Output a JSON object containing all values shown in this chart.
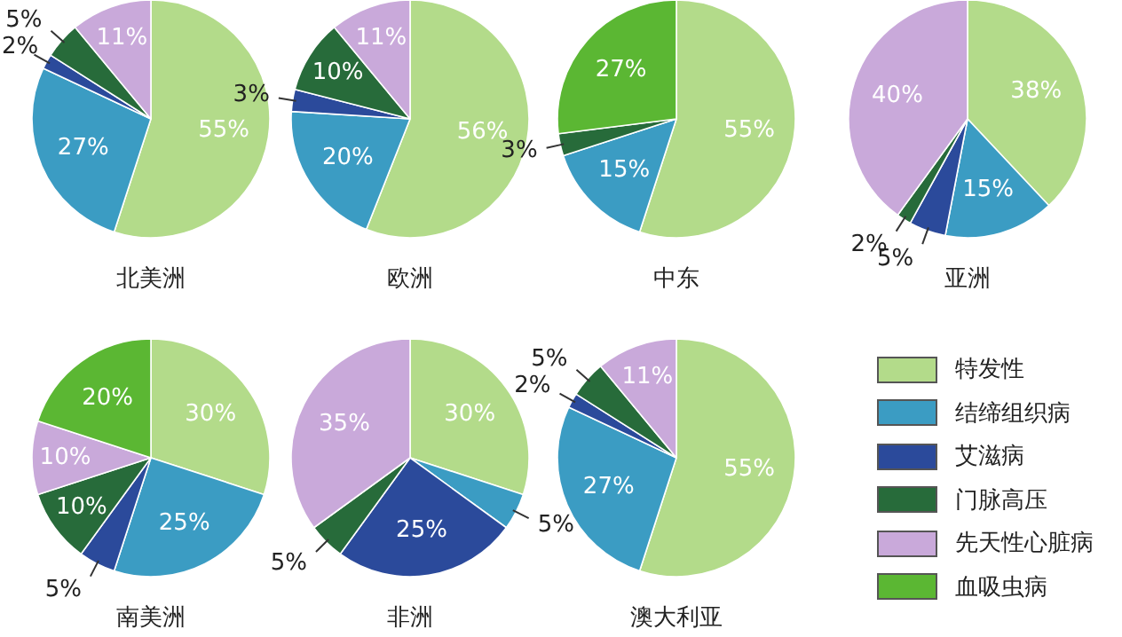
{
  "chart_data": [
    {
      "type": "pie",
      "title": "北美洲",
      "categories": [
        null,
        null,
        null,
        null,
        null,
        null
      ],
      "values": [
        55,
        27,
        2,
        5,
        11,
        0
      ],
      "colors": [
        "#b3db8a",
        "#3b9cc3",
        "#2b4a9b",
        "#276b3a",
        "#c9a9da",
        "#5bb733"
      ],
      "value_labels": [
        "55%",
        "27%",
        "2%",
        "5%",
        "11%",
        null
      ],
      "legend": false
    },
    {
      "type": "pie",
      "title": "欧洲",
      "categories": [
        null,
        null,
        null,
        null,
        null,
        null
      ],
      "values": [
        56,
        20,
        3,
        10,
        11,
        0
      ],
      "colors": [
        "#b3db8a",
        "#3b9cc3",
        "#2b4a9b",
        "#276b3a",
        "#c9a9da",
        "#5bb733"
      ],
      "value_labels": [
        "56%",
        "20%",
        "3%",
        "10%",
        "11%",
        null
      ],
      "legend": false
    },
    {
      "type": "pie",
      "title": "中东",
      "categories": [
        null,
        null,
        null,
        null,
        null,
        null
      ],
      "values": [
        55,
        15,
        0,
        3,
        0,
        27
      ],
      "colors": [
        "#b3db8a",
        "#3b9cc3",
        "#2b4a9b",
        "#276b3a",
        "#c9a9da",
        "#5bb733"
      ],
      "value_labels": [
        "55%",
        "15%",
        null,
        "3%",
        null,
        "27%"
      ],
      "legend": false
    },
    {
      "type": "pie",
      "title": "亚洲",
      "categories": [
        null,
        null,
        null,
        null,
        null,
        null
      ],
      "values": [
        38,
        15,
        5,
        2,
        40,
        0
      ],
      "colors": [
        "#b3db8a",
        "#3b9cc3",
        "#2b4a9b",
        "#276b3a",
        "#c9a9da",
        "#5bb733"
      ],
      "value_labels": [
        "38%",
        "15%",
        "5%",
        "2%",
        "40%",
        null
      ],
      "legend": false
    },
    {
      "type": "pie",
      "title": "南美洲",
      "categories": [
        null,
        null,
        null,
        null,
        null,
        null
      ],
      "values": [
        30,
        25,
        5,
        10,
        10,
        20
      ],
      "colors": [
        "#b3db8a",
        "#3b9cc3",
        "#2b4a9b",
        "#276b3a",
        "#c9a9da",
        "#5bb733"
      ],
      "value_labels": [
        "30%",
        "25%",
        "5%",
        "10%",
        "10%",
        "20%"
      ],
      "legend": false
    },
    {
      "type": "pie",
      "title": "非洲",
      "categories": [
        null,
        null,
        null,
        null,
        null,
        null
      ],
      "values": [
        30,
        5,
        25,
        5,
        35,
        0
      ],
      "colors": [
        "#b3db8a",
        "#3b9cc3",
        "#2b4a9b",
        "#276b3a",
        "#c9a9da",
        "#5bb733"
      ],
      "value_labels": [
        "30%",
        "5%",
        "25%",
        "5%",
        "35%",
        null
      ],
      "legend": false
    },
    {
      "type": "pie",
      "title": "澳大利亚",
      "categories": [
        "特发性",
        "结缔组织病",
        "艾滋病",
        "门脉高压",
        "先天性心脏病",
        "血吸虫病"
      ],
      "values": [
        55,
        27,
        2,
        5,
        11,
        0
      ],
      "colors": [
        "#b3db8a",
        "#3b9cc3",
        "#2b4a9b",
        "#276b3a",
        "#c9a9da",
        "#5bb733"
      ],
      "value_labels": [
        "55%",
        "27%",
        "2%",
        "5%",
        "11%",
        null
      ],
      "legend": "bottom right"
    }
  ]
}
